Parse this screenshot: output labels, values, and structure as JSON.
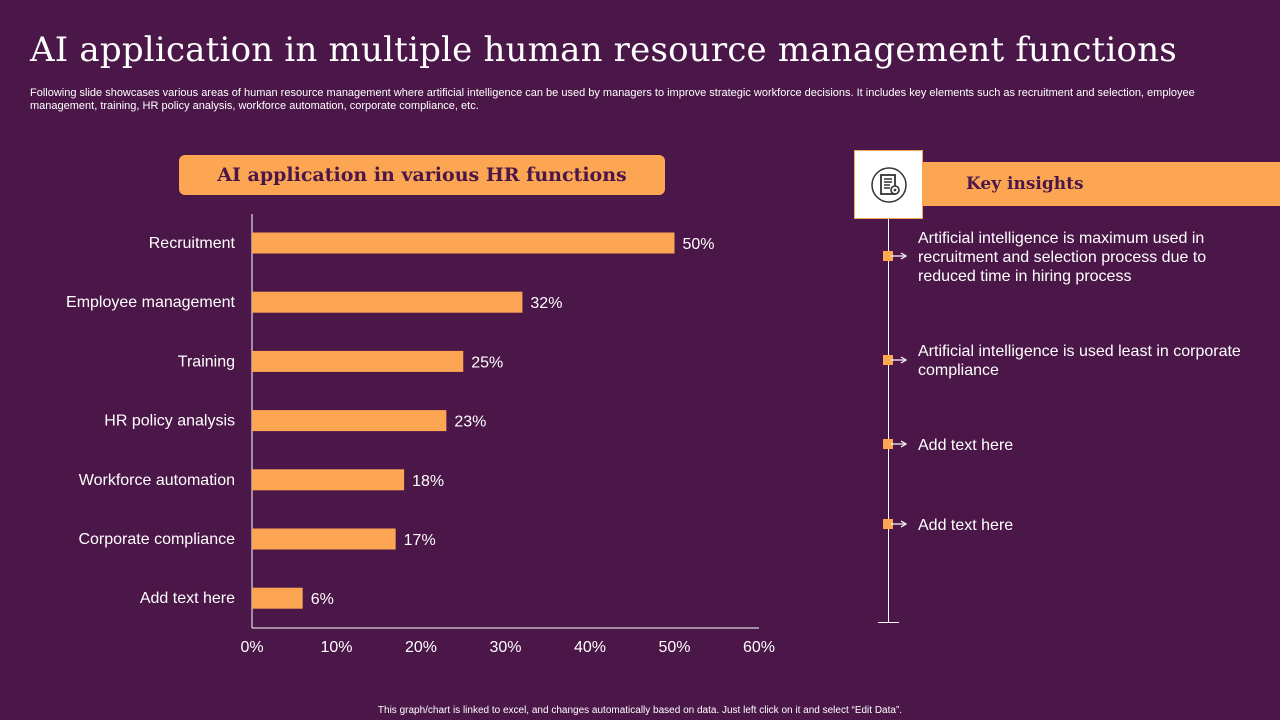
{
  "title": "AI application in multiple human resource management  functions",
  "subtitle": "Following slide showcases various areas of human resource management where artificial intelligence can be used by managers to improve strategic workforce decisions. It includes key elements such as recruitment and selection, employee management, training, HR policy analysis, workforce automation, corporate compliance, etc.",
  "chart_header": "AI application in various HR functions",
  "chart_data": {
    "type": "bar",
    "orientation": "horizontal",
    "title": "AI application in various HR functions",
    "categories": [
      "Recruitment",
      "Employee management",
      "Training",
      "HR policy analysis",
      "Workforce automation",
      "Corporate compliance",
      "Add text here"
    ],
    "values": [
      50,
      32,
      25,
      23,
      18,
      17,
      6
    ],
    "data_labels": [
      "50%",
      "32%",
      "25%",
      "23%",
      "18%",
      "17%",
      "6%"
    ],
    "xlim": [
      0,
      60
    ],
    "xticks": [
      0,
      10,
      20,
      30,
      40,
      50,
      60
    ],
    "xtick_labels": [
      "0%",
      "10%",
      "20%",
      "30%",
      "40%",
      "50%",
      "60%"
    ],
    "xlabel": "",
    "ylabel": "",
    "grid": false,
    "bar_color": "#fca653"
  },
  "insights": {
    "header": "Key insights",
    "icon": "document-gear-icon",
    "items": [
      "Artificial intelligence is maximum used in recruitment and selection process due to reduced time in hiring process",
      "Artificial intelligence is used least in corporate compliance",
      "Add text here",
      "Add text here"
    ]
  },
  "footer": "This graph/chart is linked to excel, and changes automatically based on data. Just left click on it and select “Edit Data”.",
  "colors": {
    "background": "#4b1748",
    "accent": "#fca653",
    "text": "#ffffff"
  }
}
